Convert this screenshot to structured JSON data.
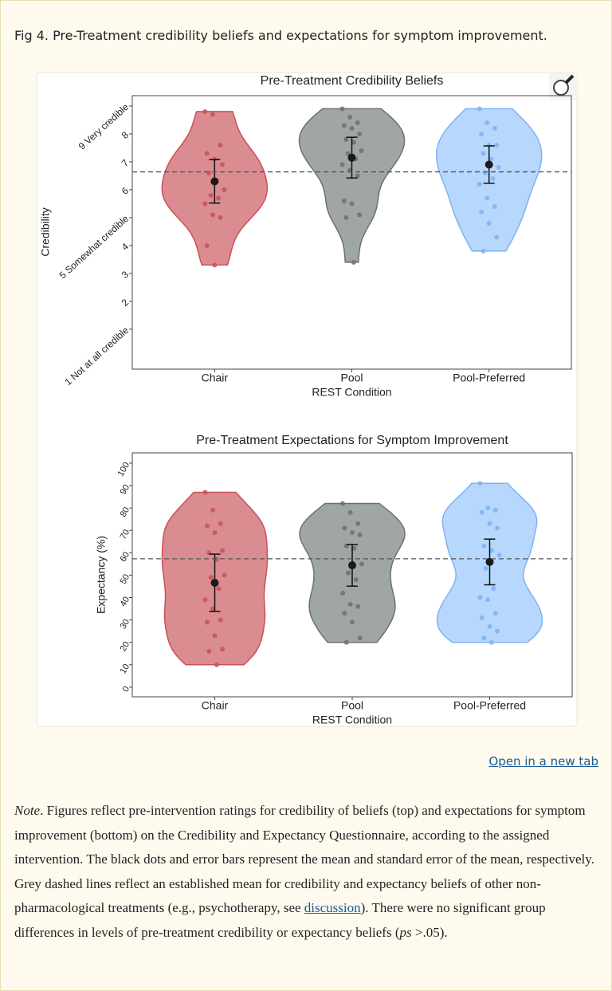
{
  "caption": "Fig 4. Pre-Treatment credibility beliefs and expectations for symptom improvement.",
  "chart_data": [
    {
      "type": "violin",
      "title": "Pre-Treatment Credibility Beliefs",
      "x_label": "REST Condition",
      "y_label": "Credibility",
      "ylim": [
        -0.43,
        9.37
      ],
      "yticks": [
        {
          "value": 1,
          "label": "1 Not at all credible"
        },
        2,
        3,
        4,
        {
          "value": 5,
          "label": "5 Somewhat credible"
        },
        6,
        7,
        8,
        {
          "value": 9,
          "label": "9 Very credible"
        }
      ],
      "reference_line": 6.64,
      "groups": [
        {
          "name": "Chair",
          "color": "#c9505a",
          "fill": "#d4787d",
          "points": [
            8.8,
            8.7,
            7.6,
            7.3,
            7.1,
            6.9,
            6.6,
            6.3,
            6.0,
            5.8,
            5.7,
            5.5,
            5.1,
            5.0,
            4.0,
            3.3
          ],
          "mean": 6.3,
          "sem": 0.78
        },
        {
          "name": "Pool",
          "color": "#6b716d",
          "fill": "#8f9892",
          "points": [
            8.9,
            8.6,
            8.4,
            8.3,
            8.2,
            8.0,
            7.8,
            7.7,
            7.4,
            7.3,
            7.1,
            6.9,
            6.7,
            6.5,
            5.6,
            5.5,
            5.1,
            5.0,
            3.4
          ],
          "mean": 7.15,
          "sem": 0.73
        },
        {
          "name": "Pool-Preferred",
          "color": "#7db4f3",
          "fill": "#aad0fb",
          "points": [
            8.9,
            8.4,
            8.2,
            8.0,
            7.6,
            7.6,
            7.3,
            7.1,
            6.8,
            6.6,
            6.4,
            6.2,
            5.7,
            5.4,
            5.2,
            4.8,
            4.3,
            3.8
          ],
          "mean": 6.9,
          "sem": 0.67
        }
      ]
    },
    {
      "type": "violin",
      "title": "Pre-Treatment Expectations for Symptom Improvement",
      "x_label": "REST Condition",
      "y_label": "Expectancy (%)",
      "ylim": [
        -4.3,
        104.6
      ],
      "yticks": [
        0,
        10,
        20,
        30,
        40,
        50,
        60,
        70,
        80,
        90,
        100
      ],
      "reference_line": 57.3,
      "groups": [
        {
          "name": "Chair",
          "color": "#c9505a",
          "fill": "#d4787d",
          "points": [
            87,
            79,
            73,
            72,
            69,
            61,
            60,
            57,
            50,
            49,
            44,
            39,
            35,
            30,
            29,
            23,
            17,
            16,
            10
          ],
          "mean": 46.6,
          "sem": 12.8
        },
        {
          "name": "Pool",
          "color": "#6b716d",
          "fill": "#8f9892",
          "points": [
            82,
            78,
            73,
            71,
            69,
            68,
            63,
            62,
            55,
            51,
            48,
            42,
            37,
            36,
            33,
            29,
            22,
            20
          ],
          "mean": 54.4,
          "sem": 9.3
        },
        {
          "name": "Pool-Preferred",
          "color": "#7db4f3",
          "fill": "#aad0fb",
          "points": [
            91,
            80,
            79,
            78,
            73,
            71,
            63,
            61,
            59,
            53,
            44,
            40,
            39,
            33,
            31,
            27,
            25,
            22,
            20
          ],
          "mean": 55.9,
          "sem": 10.2
        }
      ]
    }
  ],
  "link": "Open in a new tab",
  "note": [
    "Note",
    ". Figures reflect pre-intervention ratings for credibility of beliefs (top) and expectations for symptom improvement (bottom) on the Credibility and Expectancy Questionnaire, according to the assigned intervention. The black dots and error bars represent the mean and standard error of the mean, respectively. Grey dashed lines reflect an established mean for credibility and expectancy beliefs of other non-pharmacological treatments (e.g., psychotherapy, see ",
    "discussion",
    "). There were no significant group differences in levels of pre-treatment credibility or expectancy beliefs (",
    "ps",
    " >.05)."
  ]
}
